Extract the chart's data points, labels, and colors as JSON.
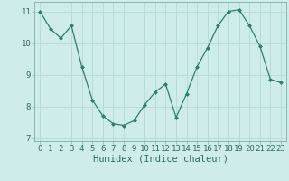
{
  "x": [
    0,
    1,
    2,
    3,
    4,
    5,
    6,
    7,
    8,
    9,
    10,
    11,
    12,
    13,
    14,
    15,
    16,
    17,
    18,
    19,
    20,
    21,
    22,
    23
  ],
  "y": [
    11.0,
    10.45,
    10.15,
    10.55,
    9.25,
    8.2,
    7.7,
    7.45,
    7.4,
    7.55,
    8.05,
    8.45,
    8.7,
    7.65,
    8.4,
    9.25,
    9.85,
    10.55,
    11.0,
    11.05,
    10.55,
    9.9,
    8.85,
    8.75
  ],
  "line_color": "#2e7d6e",
  "marker": "D",
  "marker_size": 2.0,
  "bg_color": "#ceecea",
  "grid_color": "#b8dcd8",
  "xlabel": "Humidex (Indice chaleur)",
  "xlim": [
    -0.5,
    23.5
  ],
  "ylim": [
    6.9,
    11.3
  ],
  "yticks": [
    7,
    8,
    9,
    10,
    11
  ],
  "xticks": [
    0,
    1,
    2,
    3,
    4,
    5,
    6,
    7,
    8,
    9,
    10,
    11,
    12,
    13,
    14,
    15,
    16,
    17,
    18,
    19,
    20,
    21,
    22,
    23
  ],
  "tick_fontsize": 6.5,
  "xlabel_fontsize": 7.5,
  "tick_color": "#2e6b60",
  "label_color": "#2e6b60"
}
